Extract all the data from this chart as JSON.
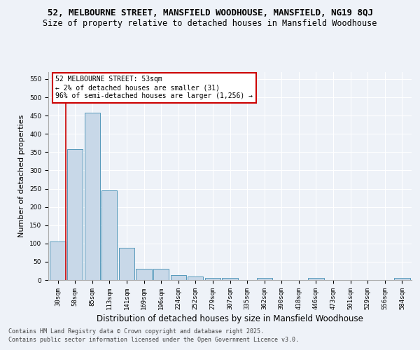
{
  "title": "52, MELBOURNE STREET, MANSFIELD WOODHOUSE, MANSFIELD, NG19 8QJ",
  "subtitle": "Size of property relative to detached houses in Mansfield Woodhouse",
  "xlabel": "Distribution of detached houses by size in Mansfield Woodhouse",
  "ylabel": "Number of detached properties",
  "categories": [
    "30sqm",
    "58sqm",
    "85sqm",
    "113sqm",
    "141sqm",
    "169sqm",
    "196sqm",
    "224sqm",
    "252sqm",
    "279sqm",
    "307sqm",
    "335sqm",
    "362sqm",
    "390sqm",
    "418sqm",
    "446sqm",
    "473sqm",
    "501sqm",
    "529sqm",
    "556sqm",
    "584sqm"
  ],
  "values": [
    105,
    358,
    457,
    245,
    88,
    31,
    31,
    13,
    9,
    6,
    5,
    0,
    5,
    0,
    0,
    5,
    0,
    0,
    0,
    0,
    5
  ],
  "bar_color": "#c8d8e8",
  "bar_edge_color": "#5599bb",
  "annotation_box_text": "52 MELBOURNE STREET: 53sqm\n← 2% of detached houses are smaller (31)\n96% of semi-detached houses are larger (1,256) →",
  "annotation_box_color": "#ffffff",
  "annotation_box_edge_color": "#cc0000",
  "vline_color": "#cc0000",
  "ylim": [
    0,
    570
  ],
  "yticks": [
    0,
    50,
    100,
    150,
    200,
    250,
    300,
    350,
    400,
    450,
    500,
    550
  ],
  "background_color": "#eef2f8",
  "axes_background": "#eef2f8",
  "grid_color": "#ffffff",
  "footer_line1": "Contains HM Land Registry data © Crown copyright and database right 2025.",
  "footer_line2": "Contains public sector information licensed under the Open Government Licence v3.0.",
  "title_fontsize": 9,
  "subtitle_fontsize": 8.5,
  "tick_fontsize": 6.5,
  "ylabel_fontsize": 8,
  "xlabel_fontsize": 8.5,
  "annot_fontsize": 7,
  "footer_fontsize": 6
}
